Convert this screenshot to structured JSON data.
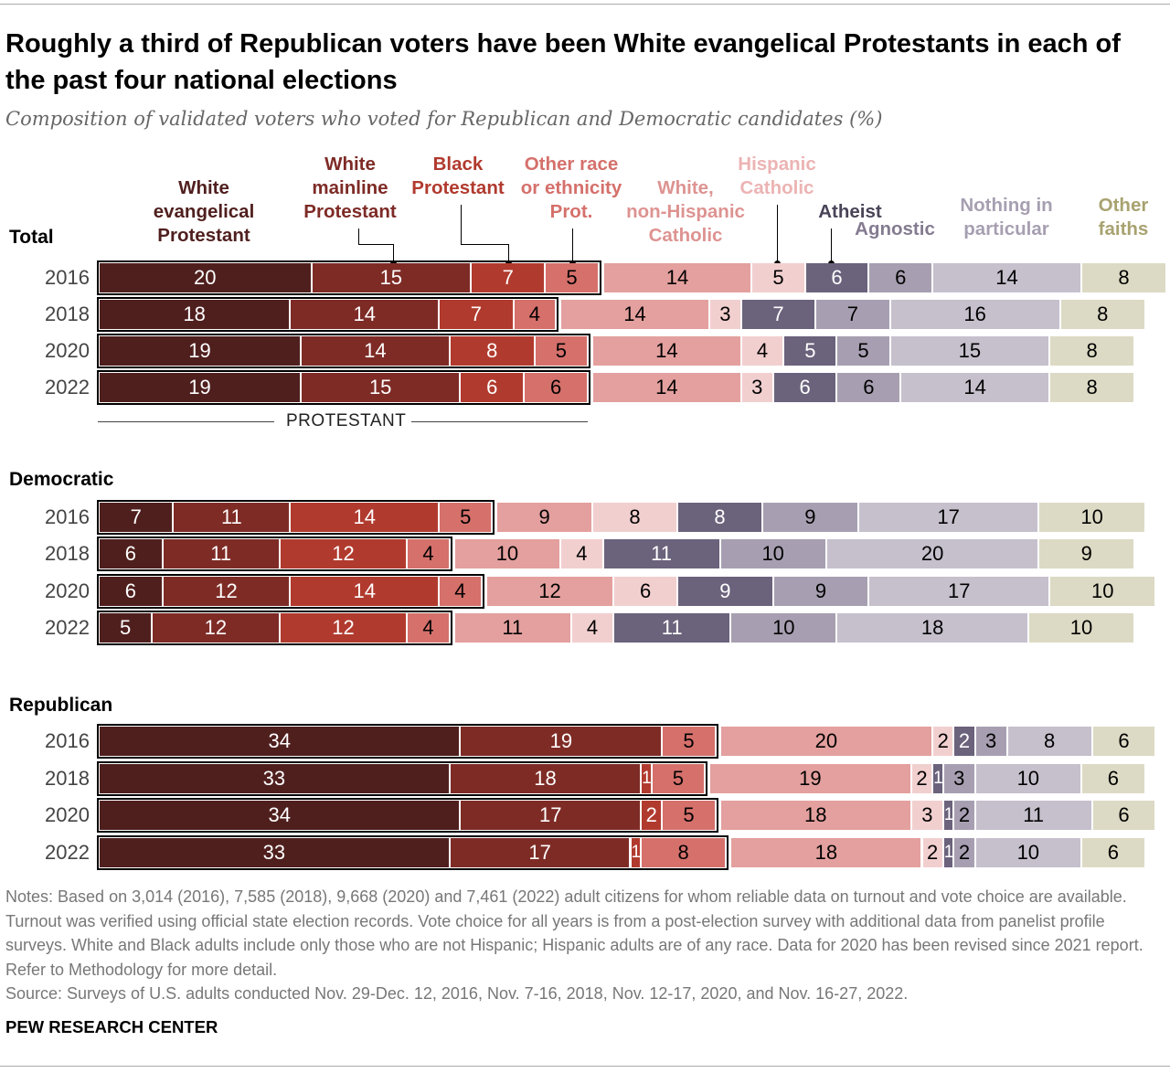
{
  "title": "Roughly a third of Republican voters have been White evangelical Protestants in each of the past four national elections",
  "subtitle": "Composition of validated voters who voted for Republican and Democratic candidates (%)",
  "chart_data": {
    "type": "bar",
    "orientation": "horizontal-stacked",
    "categories_label": "PROTESTANT",
    "xlim": [
      0,
      100
    ],
    "series_names": [
      "White evangelical Protestant",
      "White mainline Protestant",
      "Black Protestant",
      "Other race or ethnicity Prot.",
      "White, non-Hispanic Catholic",
      "Hispanic Catholic",
      "Atheist",
      "Agnostic",
      "Nothing in particular",
      "Other faiths"
    ],
    "series_colors": [
      "#4f1f1e",
      "#7e2b26",
      "#b13a2e",
      "#d5706b",
      "#e3a09e",
      "#f2cfcf",
      "#6b627c",
      "#a79fb1",
      "#c6c0cd",
      "#dcdac4"
    ],
    "label_colors": [
      "#4f1f1e",
      "#7e2b26",
      "#b13a2e",
      "#d5706b",
      "#dd9391",
      "#ecb3b3",
      "#4a4458",
      "#847b90",
      "#a79fb1",
      "#a8a270"
    ],
    "groups": [
      {
        "name": "Total",
        "rows": [
          {
            "year": "2016",
            "values": [
              20,
              15,
              7,
              5,
              14,
              5,
              6,
              6,
              14,
              8
            ]
          },
          {
            "year": "2018",
            "values": [
              18,
              14,
              7,
              4,
              14,
              3,
              7,
              7,
              16,
              8
            ]
          },
          {
            "year": "2020",
            "values": [
              19,
              14,
              8,
              5,
              14,
              4,
              5,
              5,
              15,
              8
            ]
          },
          {
            "year": "2022",
            "values": [
              19,
              15,
              6,
              6,
              14,
              3,
              6,
              6,
              14,
              8
            ]
          }
        ]
      },
      {
        "name": "Democratic",
        "rows": [
          {
            "year": "2016",
            "values": [
              7,
              11,
              14,
              5,
              9,
              8,
              8,
              9,
              17,
              10
            ]
          },
          {
            "year": "2018",
            "values": [
              6,
              11,
              12,
              4,
              10,
              4,
              11,
              10,
              20,
              9
            ]
          },
          {
            "year": "2020",
            "values": [
              6,
              12,
              14,
              4,
              12,
              6,
              9,
              9,
              17,
              10
            ]
          },
          {
            "year": "2022",
            "values": [
              5,
              12,
              12,
              4,
              11,
              4,
              11,
              10,
              18,
              10
            ]
          }
        ]
      },
      {
        "name": "Republican",
        "rows": [
          {
            "year": "2016",
            "values": [
              34,
              19,
              0,
              5,
              20,
              2,
              2,
              3,
              8,
              6
            ]
          },
          {
            "year": "2018",
            "values": [
              33,
              18,
              1,
              5,
              19,
              2,
              1,
              3,
              10,
              6
            ]
          },
          {
            "year": "2020",
            "values": [
              34,
              17,
              2,
              5,
              18,
              3,
              1,
              2,
              11,
              6
            ]
          },
          {
            "year": "2022",
            "values": [
              33,
              17,
              1,
              8,
              18,
              2,
              1,
              2,
              10,
              6
            ]
          }
        ]
      }
    ]
  },
  "legend": {
    "wep": [
      "White",
      "evangelical",
      "Protestant"
    ],
    "wmp": [
      "White",
      "mainline",
      "Protestant"
    ],
    "bp": [
      "Black",
      "Protestant"
    ],
    "orp": [
      "Other race",
      "or ethnicity",
      "Prot."
    ],
    "wnhc": [
      "White,",
      "non-Hispanic",
      "Catholic"
    ],
    "hc": [
      "Hispanic",
      "Catholic"
    ],
    "atheist": "Atheist",
    "agnostic": "Agnostic",
    "nothing": [
      "Nothing in",
      "particular"
    ],
    "other": [
      "Other",
      "faiths"
    ]
  },
  "notes": "Notes: Based on 3,014 (2016), 7,585 (2018), 9,668 (2020) and 7,461 (2022) adult citizens for whom reliable data on turnout and vote choice are available. Turnout was verified using official state election records. Vote choice for all years is from a post-election survey with additional data from panelist profile surveys. White and Black adults include only those who are not Hispanic; Hispanic adults are of any race. Data for 2020 has been revised since 2021 report. Refer to Methodology for more detail.",
  "source": "Source: Surveys of U.S. adults conducted Nov. 29-Dec. 12, 2016, Nov. 7-16, 2018, Nov. 12-17, 2020, and Nov. 16-27, 2022.",
  "brand": "PEW RESEARCH CENTER"
}
